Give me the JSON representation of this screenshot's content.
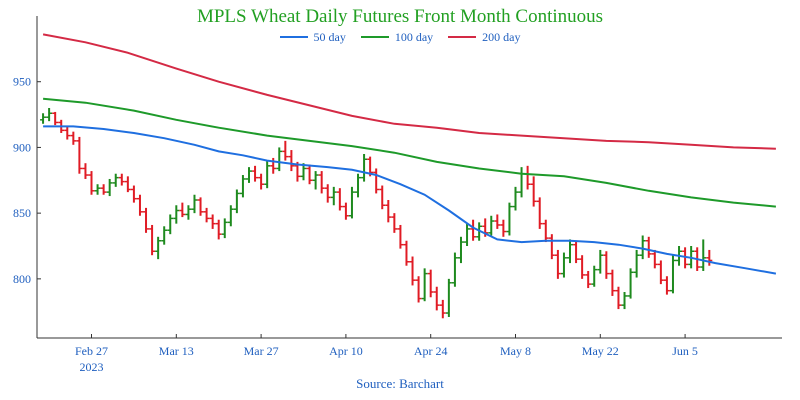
{
  "chart_data": {
    "type": "line",
    "title": "MPLS Wheat Daily Futures Front Month Continuous",
    "title_color": "#22a022",
    "source": "Source: Barchart",
    "text_color": "#1f5fbf",
    "xticks": [
      {
        "label": "Feb 27",
        "sub": "2023",
        "x": 46
      },
      {
        "label": "Mar 13",
        "x": 60
      },
      {
        "label": "Mar 27",
        "x": 74
      },
      {
        "label": "Apr 10",
        "x": 88
      },
      {
        "label": "Apr 24",
        "x": 102
      },
      {
        "label": "May 8",
        "x": 116
      },
      {
        "label": "May 22",
        "x": 130
      },
      {
        "label": "Jun 5",
        "x": 144
      }
    ],
    "xlim": [
      37,
      160
    ],
    "yticks": [
      800,
      850,
      900,
      950
    ],
    "ylim": [
      755,
      1000
    ],
    "legend_position": "top-center",
    "series": [
      {
        "name": "50 day",
        "color": "#1f6fe0",
        "points": [
          [
            38,
            916
          ],
          [
            43,
            916
          ],
          [
            48,
            914
          ],
          [
            53,
            911
          ],
          [
            58,
            907
          ],
          [
            63,
            902
          ],
          [
            67,
            897
          ],
          [
            71,
            894
          ],
          [
            75,
            890
          ],
          [
            80,
            887
          ],
          [
            85,
            885
          ],
          [
            89,
            883
          ],
          [
            93,
            879
          ],
          [
            97,
            872
          ],
          [
            101,
            864
          ],
          [
            105,
            852
          ],
          [
            109,
            839
          ],
          [
            113,
            830
          ],
          [
            117,
            828
          ],
          [
            121,
            829
          ],
          [
            125,
            829
          ],
          [
            129,
            828
          ],
          [
            133,
            826
          ],
          [
            137,
            823
          ],
          [
            141,
            819
          ],
          [
            145,
            816
          ],
          [
            149,
            812
          ],
          [
            154,
            808
          ],
          [
            159,
            804
          ]
        ]
      },
      {
        "name": "100 day",
        "color": "#1e9a2a",
        "points": [
          [
            38,
            937
          ],
          [
            45,
            934
          ],
          [
            53,
            928
          ],
          [
            60,
            921
          ],
          [
            67,
            915
          ],
          [
            75,
            909
          ],
          [
            82,
            905
          ],
          [
            89,
            901
          ],
          [
            96,
            896
          ],
          [
            103,
            889
          ],
          [
            110,
            884
          ],
          [
            117,
            880
          ],
          [
            124,
            878
          ],
          [
            131,
            873
          ],
          [
            138,
            867
          ],
          [
            145,
            862
          ],
          [
            152,
            858
          ],
          [
            159,
            855
          ]
        ]
      },
      {
        "name": "200 day",
        "color": "#d42a45",
        "points": [
          [
            38,
            986
          ],
          [
            45,
            980
          ],
          [
            52,
            972
          ],
          [
            60,
            960
          ],
          [
            67,
            950
          ],
          [
            75,
            940
          ],
          [
            82,
            932
          ],
          [
            89,
            924
          ],
          [
            96,
            918
          ],
          [
            103,
            915
          ],
          [
            110,
            911
          ],
          [
            117,
            909
          ],
          [
            124,
            907
          ],
          [
            131,
            905
          ],
          [
            138,
            904
          ],
          [
            145,
            902
          ],
          [
            152,
            900
          ],
          [
            159,
            899
          ]
        ]
      }
    ],
    "ohlc_colors": {
      "up": "#1e8a1e",
      "down": "#e01b24"
    },
    "ohlc": [
      [
        38,
        921,
        926,
        918,
        923
      ],
      [
        39,
        923,
        930,
        920,
        926
      ],
      [
        40,
        926,
        927,
        917,
        919
      ],
      [
        41,
        919,
        921,
        911,
        913
      ],
      [
        42,
        913,
        916,
        906,
        909
      ],
      [
        43,
        909,
        912,
        902,
        905
      ],
      [
        44,
        905,
        908,
        880,
        884
      ],
      [
        45,
        884,
        888,
        876,
        879
      ],
      [
        46,
        879,
        882,
        864,
        867
      ],
      [
        47,
        867,
        872,
        864,
        869
      ],
      [
        48,
        869,
        872,
        864,
        866
      ],
      [
        49,
        866,
        876,
        863,
        873
      ],
      [
        50,
        873,
        880,
        870,
        877
      ],
      [
        51,
        877,
        880,
        871,
        874
      ],
      [
        52,
        874,
        878,
        866,
        868
      ],
      [
        53,
        868,
        871,
        858,
        861
      ],
      [
        54,
        861,
        864,
        848,
        851
      ],
      [
        55,
        851,
        854,
        835,
        838
      ],
      [
        56,
        838,
        841,
        818,
        821
      ],
      [
        57,
        821,
        832,
        815,
        829
      ],
      [
        58,
        829,
        840,
        826,
        837
      ],
      [
        59,
        837,
        849,
        834,
        846
      ],
      [
        60,
        846,
        856,
        842,
        852
      ],
      [
        61,
        852,
        858,
        847,
        849
      ],
      [
        62,
        849,
        856,
        845,
        853
      ],
      [
        63,
        853,
        864,
        850,
        860
      ],
      [
        64,
        860,
        862,
        848,
        851
      ],
      [
        65,
        851,
        854,
        843,
        846
      ],
      [
        66,
        846,
        849,
        838,
        842
      ],
      [
        67,
        842,
        845,
        830,
        834
      ],
      [
        68,
        834,
        846,
        831,
        843
      ],
      [
        69,
        843,
        856,
        840,
        853
      ],
      [
        70,
        853,
        868,
        850,
        865
      ],
      [
        71,
        865,
        879,
        862,
        876
      ],
      [
        72,
        876,
        885,
        873,
        882
      ],
      [
        73,
        882,
        886,
        874,
        877
      ],
      [
        74,
        877,
        880,
        868,
        872
      ],
      [
        75,
        872,
        890,
        869,
        886
      ],
      [
        76,
        886,
        892,
        880,
        884
      ],
      [
        77,
        884,
        900,
        882,
        897
      ],
      [
        78,
        897,
        905,
        890,
        893
      ],
      [
        79,
        893,
        898,
        882,
        886
      ],
      [
        80,
        886,
        889,
        874,
        878
      ],
      [
        81,
        878,
        888,
        875,
        884
      ],
      [
        82,
        884,
        887,
        872,
        875
      ],
      [
        83,
        875,
        882,
        868,
        879
      ],
      [
        84,
        879,
        882,
        865,
        869
      ],
      [
        85,
        869,
        872,
        858,
        862
      ],
      [
        86,
        862,
        870,
        856,
        866
      ],
      [
        87,
        866,
        869,
        852,
        855
      ],
      [
        88,
        855,
        858,
        845,
        848
      ],
      [
        89,
        848,
        870,
        846,
        866
      ],
      [
        90,
        866,
        880,
        862,
        877
      ],
      [
        91,
        877,
        895,
        874,
        891
      ],
      [
        92,
        891,
        893,
        878,
        881
      ],
      [
        93,
        881,
        884,
        865,
        868
      ],
      [
        94,
        868,
        871,
        853,
        856
      ],
      [
        95,
        856,
        860,
        843,
        847
      ],
      [
        96,
        847,
        850,
        835,
        838
      ],
      [
        97,
        838,
        841,
        823,
        826
      ],
      [
        98,
        826,
        829,
        810,
        813
      ],
      [
        99,
        813,
        817,
        795,
        799
      ],
      [
        100,
        799,
        802,
        782,
        785
      ],
      [
        101,
        785,
        808,
        783,
        804
      ],
      [
        102,
        804,
        807,
        786,
        790
      ],
      [
        103,
        790,
        794,
        776,
        780
      ],
      [
        104,
        780,
        784,
        770,
        774
      ],
      [
        105,
        774,
        800,
        771,
        797
      ],
      [
        106,
        797,
        820,
        794,
        816
      ],
      [
        107,
        816,
        832,
        812,
        828
      ],
      [
        108,
        828,
        842,
        825,
        838
      ],
      [
        109,
        838,
        845,
        829,
        832
      ],
      [
        110,
        832,
        843,
        829,
        840
      ],
      [
        111,
        840,
        846,
        832,
        835
      ],
      [
        112,
        835,
        848,
        833,
        844
      ],
      [
        113,
        844,
        849,
        838,
        841
      ],
      [
        114,
        841,
        845,
        832,
        836
      ],
      [
        115,
        836,
        858,
        833,
        855
      ],
      [
        116,
        855,
        870,
        852,
        866
      ],
      [
        117,
        866,
        885,
        862,
        880
      ],
      [
        118,
        880,
        886,
        868,
        872
      ],
      [
        119,
        872,
        878,
        855,
        859
      ],
      [
        120,
        859,
        862,
        838,
        842
      ],
      [
        121,
        842,
        845,
        828,
        831
      ],
      [
        122,
        831,
        834,
        815,
        818
      ],
      [
        123,
        818,
        822,
        800,
        804
      ],
      [
        124,
        804,
        820,
        801,
        816
      ],
      [
        125,
        816,
        830,
        812,
        826
      ],
      [
        126,
        826,
        829,
        812,
        815
      ],
      [
        127,
        815,
        818,
        800,
        803
      ],
      [
        128,
        803,
        806,
        793,
        796
      ],
      [
        129,
        796,
        810,
        794,
        807
      ],
      [
        130,
        807,
        822,
        804,
        818
      ],
      [
        131,
        818,
        821,
        800,
        804
      ],
      [
        132,
        804,
        807,
        787,
        791
      ],
      [
        133,
        791,
        794,
        777,
        780
      ],
      [
        134,
        780,
        790,
        777,
        787
      ],
      [
        135,
        787,
        808,
        785,
        805
      ],
      [
        136,
        805,
        822,
        801,
        818
      ],
      [
        137,
        818,
        833,
        815,
        829
      ],
      [
        138,
        829,
        832,
        816,
        819
      ],
      [
        139,
        819,
        822,
        808,
        811
      ],
      [
        140,
        811,
        814,
        796,
        799
      ],
      [
        141,
        799,
        802,
        788,
        791
      ],
      [
        142,
        791,
        818,
        789,
        814
      ],
      [
        143,
        814,
        825,
        810,
        821
      ],
      [
        144,
        821,
        824,
        808,
        811
      ],
      [
        145,
        811,
        825,
        808,
        821
      ],
      [
        146,
        821,
        824,
        806,
        809
      ],
      [
        147,
        809,
        830,
        806,
        816
      ],
      [
        148,
        816,
        822,
        810,
        814
      ]
    ]
  }
}
